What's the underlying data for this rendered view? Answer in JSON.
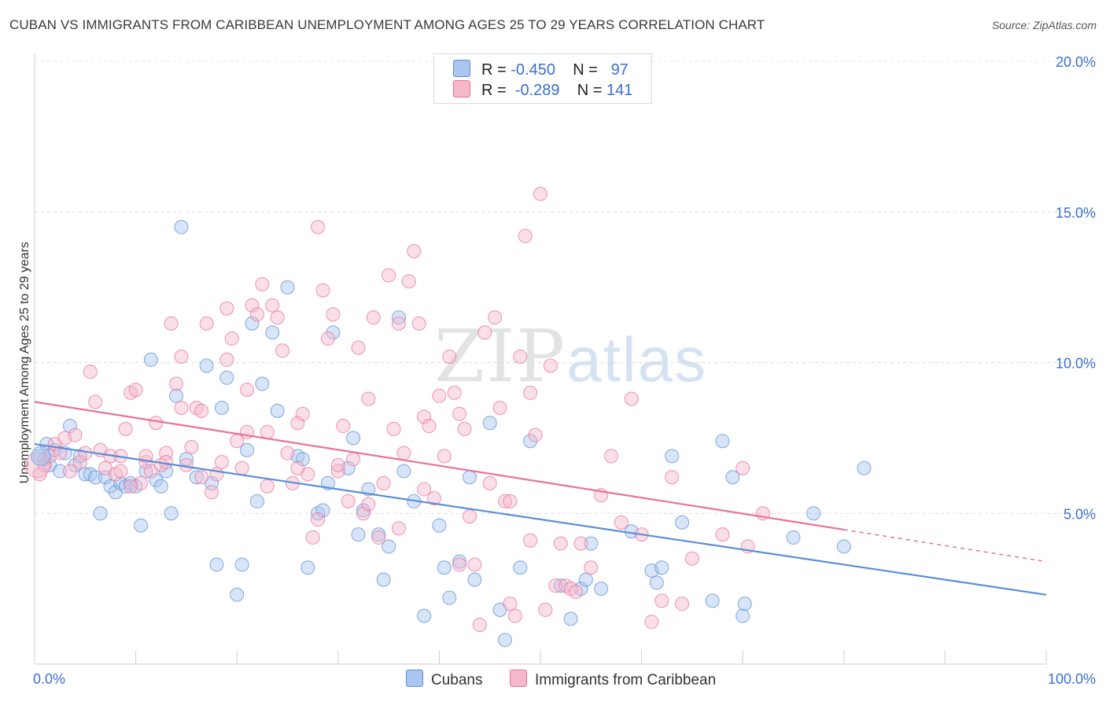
{
  "header": {
    "title": "CUBAN VS IMMIGRANTS FROM CARIBBEAN UNEMPLOYMENT AMONG AGES 25 TO 29 YEARS CORRELATION CHART",
    "source": "Source: ZipAtlas.com"
  },
  "watermark": {
    "zip": "ZIP",
    "atlas": "atlas"
  },
  "legend": {
    "rows": [
      {
        "r_label": "R =",
        "r_value": "-0.450",
        "n_label": "N =",
        "n_value": "97",
        "color": "#a9c6ef"
      },
      {
        "r_label": "R =",
        "r_value": "-0.289",
        "n_label": "N =",
        "n_value": "141",
        "color": "#f5b8cb"
      }
    ]
  },
  "bottom_legend": {
    "items": [
      {
        "label": "Cubans",
        "color": "#a9c6ef"
      },
      {
        "label": "Immigrants from Caribbean",
        "color": "#f5b8cb"
      }
    ]
  },
  "chart_data": {
    "type": "scatter",
    "ylabel": "Unemployment Among Ages 25 to 29 years",
    "xlabel": "",
    "xlim": [
      0,
      100
    ],
    "ylim": [
      0,
      20
    ],
    "x_tick_labels": [
      "0.0%",
      "100.0%"
    ],
    "y_tick_labels": [
      "5.0%",
      "10.0%",
      "15.0%",
      "20.0%"
    ],
    "y_ticks": [
      5,
      10,
      15,
      20
    ],
    "grid": true,
    "series": [
      {
        "name": "Cubans",
        "color": "#5b8ed6",
        "fill": "#a9c6ef",
        "trend": {
          "x0": 0,
          "y0": 7.3,
          "x1": 100,
          "y1": 2.3,
          "dashed_from": null
        },
        "points": [
          [
            1,
            6.8
          ],
          [
            1.2,
            7.3
          ],
          [
            1.5,
            6.6
          ],
          [
            2,
            7.1
          ],
          [
            2.5,
            6.4
          ],
          [
            3,
            7.0
          ],
          [
            3.5,
            7.9
          ],
          [
            4,
            6.6
          ],
          [
            4.5,
            6.9
          ],
          [
            5,
            6.3
          ],
          [
            5.5,
            6.3
          ],
          [
            6,
            6.2
          ],
          [
            6.5,
            5.0
          ],
          [
            7,
            6.2
          ],
          [
            7.5,
            5.9
          ],
          [
            8,
            5.7
          ],
          [
            8.5,
            6.0
          ],
          [
            9,
            5.9
          ],
          [
            9.5,
            6.0
          ],
          [
            10,
            5.9
          ],
          [
            10.5,
            4.6
          ],
          [
            11,
            6.4
          ],
          [
            11.5,
            10.1
          ],
          [
            12,
            6.1
          ],
          [
            12.5,
            5.9
          ],
          [
            13,
            6.4
          ],
          [
            13.5,
            5.0
          ],
          [
            14,
            8.9
          ],
          [
            14.5,
            14.5
          ],
          [
            15,
            6.8
          ],
          [
            16,
            6.2
          ],
          [
            17,
            9.9
          ],
          [
            17.5,
            6.0
          ],
          [
            18,
            3.3
          ],
          [
            18.5,
            8.5
          ],
          [
            19,
            9.5
          ],
          [
            20,
            2.3
          ],
          [
            20.5,
            3.3
          ],
          [
            21,
            7.1
          ],
          [
            21.5,
            11.3
          ],
          [
            22,
            5.4
          ],
          [
            22.5,
            9.3
          ],
          [
            23.5,
            11.0
          ],
          [
            24,
            8.4
          ],
          [
            25,
            12.5
          ],
          [
            26,
            6.9
          ],
          [
            26.5,
            6.8
          ],
          [
            27,
            3.2
          ],
          [
            28,
            5.0
          ],
          [
            28.5,
            5.1
          ],
          [
            29,
            6.0
          ],
          [
            29.5,
            11.0
          ],
          [
            31,
            6.5
          ],
          [
            31.5,
            7.5
          ],
          [
            32,
            4.3
          ],
          [
            32.5,
            5.1
          ],
          [
            33,
            5.8
          ],
          [
            34,
            4.3
          ],
          [
            34.5,
            2.8
          ],
          [
            35,
            3.9
          ],
          [
            36,
            11.5
          ],
          [
            36.5,
            6.4
          ],
          [
            37.5,
            5.4
          ],
          [
            38.5,
            1.6
          ],
          [
            40,
            4.6
          ],
          [
            40.5,
            3.2
          ],
          [
            41,
            2.2
          ],
          [
            42,
            3.4
          ],
          [
            43,
            6.2
          ],
          [
            43.5,
            2.8
          ],
          [
            45,
            8.0
          ],
          [
            46,
            1.8
          ],
          [
            46.5,
            0.8
          ],
          [
            48,
            3.2
          ],
          [
            49,
            7.4
          ],
          [
            52,
            2.6
          ],
          [
            53,
            1.5
          ],
          [
            54,
            2.5
          ],
          [
            54.5,
            2.8
          ],
          [
            55,
            4.0
          ],
          [
            56,
            2.5
          ],
          [
            59,
            4.4
          ],
          [
            61,
            3.1
          ],
          [
            61.5,
            2.7
          ],
          [
            62,
            3.2
          ],
          [
            63,
            6.9
          ],
          [
            64,
            4.7
          ],
          [
            67,
            2.1
          ],
          [
            68,
            7.4
          ],
          [
            69,
            6.2
          ],
          [
            70,
            1.6
          ],
          [
            70.2,
            2.0
          ],
          [
            75,
            4.2
          ],
          [
            77,
            5.0
          ],
          [
            80,
            3.9
          ],
          [
            82,
            6.5
          ],
          [
            0.5,
            6.9
          ]
        ]
      },
      {
        "name": "Immigrants from Caribbean",
        "color": "#e8729a",
        "fill": "#f5b8cb",
        "trend": {
          "x0": 0,
          "y0": 8.7,
          "x1": 100,
          "y1": 3.4,
          "dashed_from": 80
        },
        "points": [
          [
            0.5,
            6.3
          ],
          [
            1,
            6.6
          ],
          [
            1.5,
            6.9
          ],
          [
            2,
            7.3
          ],
          [
            2.5,
            7.0
          ],
          [
            3,
            7.5
          ],
          [
            3.5,
            6.4
          ],
          [
            4,
            7.6
          ],
          [
            4.5,
            6.7
          ],
          [
            5,
            7.0
          ],
          [
            5.5,
            9.7
          ],
          [
            6,
            8.7
          ],
          [
            6.5,
            7.1
          ],
          [
            7,
            6.5
          ],
          [
            7.5,
            6.9
          ],
          [
            8,
            6.3
          ],
          [
            8.5,
            6.9
          ],
          [
            9,
            7.8
          ],
          [
            9.5,
            9.0
          ],
          [
            10,
            9.1
          ],
          [
            10.5,
            6.0
          ],
          [
            11,
            6.7
          ],
          [
            11.5,
            6.4
          ],
          [
            12,
            8.0
          ],
          [
            12.5,
            6.6
          ],
          [
            13,
            7.0
          ],
          [
            13.5,
            11.3
          ],
          [
            14,
            9.3
          ],
          [
            14.5,
            10.2
          ],
          [
            15,
            6.6
          ],
          [
            15.5,
            7.2
          ],
          [
            16,
            8.5
          ],
          [
            16.5,
            8.4
          ],
          [
            17,
            11.3
          ],
          [
            17.5,
            5.7
          ],
          [
            18,
            6.3
          ],
          [
            18.5,
            6.7
          ],
          [
            19,
            10.1
          ],
          [
            19.5,
            10.8
          ],
          [
            20,
            7.4
          ],
          [
            20.5,
            6.5
          ],
          [
            21,
            9.1
          ],
          [
            21.5,
            11.9
          ],
          [
            22,
            11.6
          ],
          [
            22.5,
            12.6
          ],
          [
            23,
            7.7
          ],
          [
            23.5,
            11.9
          ],
          [
            24,
            11.5
          ],
          [
            24.5,
            10.4
          ],
          [
            25,
            7.0
          ],
          [
            25.5,
            6.0
          ],
          [
            26,
            8.0
          ],
          [
            26.5,
            8.3
          ],
          [
            27,
            6.3
          ],
          [
            27.5,
            4.2
          ],
          [
            28,
            14.5
          ],
          [
            28.5,
            12.4
          ],
          [
            29,
            10.8
          ],
          [
            29.5,
            11.6
          ],
          [
            30,
            6.4
          ],
          [
            30.5,
            7.9
          ],
          [
            31,
            5.4
          ],
          [
            31.5,
            6.8
          ],
          [
            32,
            10.5
          ],
          [
            32.5,
            5.0
          ],
          [
            33,
            8.8
          ],
          [
            33.5,
            11.5
          ],
          [
            34,
            4.2
          ],
          [
            34.5,
            6.0
          ],
          [
            35,
            12.9
          ],
          [
            35.5,
            7.8
          ],
          [
            36,
            11.3
          ],
          [
            36.5,
            7.0
          ],
          [
            37,
            12.7
          ],
          [
            37.5,
            13.7
          ],
          [
            38,
            11.3
          ],
          [
            38.5,
            8.2
          ],
          [
            39,
            7.9
          ],
          [
            39.5,
            5.5
          ],
          [
            40,
            8.9
          ],
          [
            40.5,
            6.9
          ],
          [
            41,
            10.2
          ],
          [
            41.5,
            9.0
          ],
          [
            42,
            8.3
          ],
          [
            42.5,
            7.8
          ],
          [
            43,
            4.9
          ],
          [
            43.5,
            3.3
          ],
          [
            44,
            1.3
          ],
          [
            44.5,
            11.0
          ],
          [
            45,
            6.0
          ],
          [
            45.5,
            11.5
          ],
          [
            46,
            8.5
          ],
          [
            46.5,
            5.4
          ],
          [
            47,
            2.0
          ],
          [
            47.5,
            1.6
          ],
          [
            48,
            10.2
          ],
          [
            48.5,
            14.2
          ],
          [
            49,
            9.0
          ],
          [
            49.5,
            7.6
          ],
          [
            50,
            15.6
          ],
          [
            50.5,
            1.8
          ],
          [
            51,
            9.9
          ],
          [
            51.5,
            2.6
          ],
          [
            52,
            4.0
          ],
          [
            52.5,
            2.6
          ],
          [
            53,
            2.5
          ],
          [
            53.5,
            2.4
          ],
          [
            54,
            4.0
          ],
          [
            55,
            3.2
          ],
          [
            56,
            5.6
          ],
          [
            57,
            6.9
          ],
          [
            58,
            4.7
          ],
          [
            59,
            8.8
          ],
          [
            60,
            4.3
          ],
          [
            61,
            1.4
          ],
          [
            62,
            2.1
          ],
          [
            63,
            6.2
          ],
          [
            64,
            2.0
          ],
          [
            65,
            3.5
          ],
          [
            68,
            4.3
          ],
          [
            70,
            6.5
          ],
          [
            70.5,
            3.9
          ],
          [
            72,
            5.0
          ],
          [
            8.5,
            6.4
          ],
          [
            9.5,
            5.9
          ],
          [
            11,
            6.9
          ],
          [
            13,
            6.7
          ],
          [
            14.5,
            8.5
          ],
          [
            16.5,
            6.2
          ],
          [
            19,
            11.8
          ],
          [
            21,
            7.7
          ],
          [
            23,
            5.9
          ],
          [
            26,
            6.5
          ],
          [
            28,
            4.8
          ],
          [
            30,
            6.6
          ],
          [
            33,
            5.3
          ],
          [
            36,
            4.5
          ],
          [
            38.5,
            5.8
          ],
          [
            42,
            3.3
          ],
          [
            47,
            5.4
          ],
          [
            49,
            4.1
          ]
        ]
      }
    ]
  }
}
